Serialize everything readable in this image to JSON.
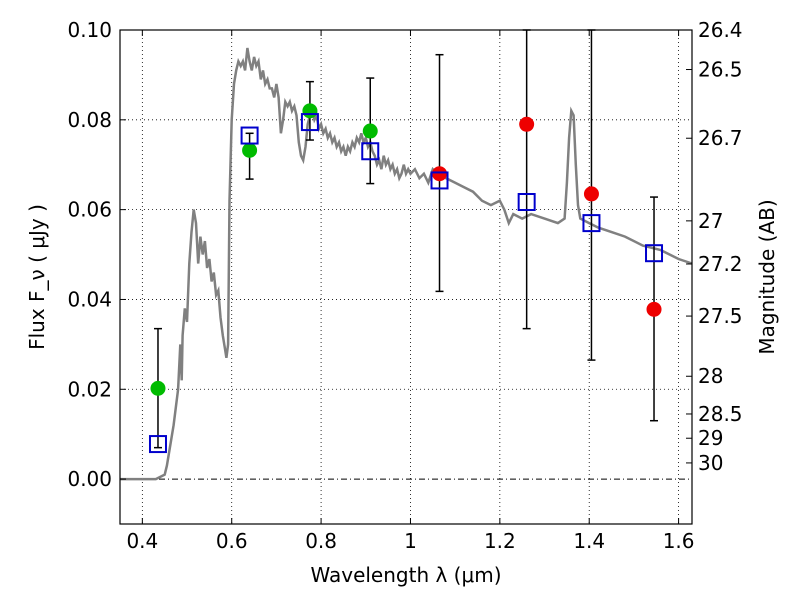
{
  "chart_data": {
    "type": "scatter",
    "xlabel": "Wavelength  λ (μm)",
    "ylabel": "Flux  F_ν  ( μJy )",
    "ylabel_right": "Magnitude (AB)",
    "xlim": [
      0.35,
      1.63
    ],
    "ylim": [
      -0.01,
      0.1
    ],
    "grid": true,
    "x_ticks": [
      0.4,
      0.6,
      0.8,
      1.0,
      1.2,
      1.4,
      1.6
    ],
    "x_tick_labels": [
      "0.4",
      "0.6",
      "0.8",
      "1",
      "1.2",
      "1.4",
      "1.6"
    ],
    "y_ticks": [
      0.0,
      0.02,
      0.04,
      0.06,
      0.08,
      0.1
    ],
    "y_tick_labels": [
      "0.00",
      "0.02",
      "0.04",
      "0.06",
      "0.08",
      "0.10"
    ],
    "right_ticks": [
      {
        "label": "26.4",
        "flux": 0.1
      },
      {
        "label": "26.5",
        "flux": 0.0912
      },
      {
        "label": "26.7",
        "flux": 0.0759
      },
      {
        "label": "27",
        "flux": 0.0575
      },
      {
        "label": "27.2",
        "flux": 0.0479
      },
      {
        "label": "27.5",
        "flux": 0.0363
      },
      {
        "label": "28",
        "flux": 0.0229
      },
      {
        "label": "28.5",
        "flux": 0.0145
      },
      {
        "label": "29",
        "flux": 0.0091
      },
      {
        "label": "30",
        "flux": 0.0036
      }
    ],
    "sed_curve": {
      "color": "#808080",
      "points": [
        [
          0.35,
          0.0
        ],
        [
          0.43,
          0.0
        ],
        [
          0.45,
          0.001
        ],
        [
          0.455,
          0.003
        ],
        [
          0.47,
          0.012
        ],
        [
          0.48,
          0.02
        ],
        [
          0.485,
          0.03
        ],
        [
          0.488,
          0.022
        ],
        [
          0.49,
          0.032
        ],
        [
          0.495,
          0.038
        ],
        [
          0.5,
          0.035
        ],
        [
          0.505,
          0.048
        ],
        [
          0.51,
          0.055
        ],
        [
          0.515,
          0.06
        ],
        [
          0.52,
          0.057
        ],
        [
          0.525,
          0.048
        ],
        [
          0.53,
          0.054
        ],
        [
          0.535,
          0.05
        ],
        [
          0.54,
          0.053
        ],
        [
          0.545,
          0.047
        ],
        [
          0.55,
          0.049
        ],
        [
          0.555,
          0.044
        ],
        [
          0.56,
          0.046
        ],
        [
          0.565,
          0.041
        ],
        [
          0.57,
          0.042
        ],
        [
          0.575,
          0.036
        ],
        [
          0.58,
          0.032
        ],
        [
          0.585,
          0.029
        ],
        [
          0.588,
          0.027
        ],
        [
          0.592,
          0.03
        ],
        [
          0.595,
          0.062
        ],
        [
          0.6,
          0.08
        ],
        [
          0.605,
          0.088
        ],
        [
          0.61,
          0.091
        ],
        [
          0.615,
          0.093
        ],
        [
          0.62,
          0.092
        ],
        [
          0.625,
          0.093
        ],
        [
          0.63,
          0.091
        ],
        [
          0.635,
          0.096
        ],
        [
          0.64,
          0.093
        ],
        [
          0.645,
          0.091
        ],
        [
          0.65,
          0.094
        ],
        [
          0.655,
          0.092
        ],
        [
          0.66,
          0.093
        ],
        [
          0.665,
          0.089
        ],
        [
          0.67,
          0.091
        ],
        [
          0.675,
          0.088
        ],
        [
          0.68,
          0.089
        ],
        [
          0.685,
          0.087
        ],
        [
          0.69,
          0.087
        ],
        [
          0.695,
          0.085
        ],
        [
          0.7,
          0.088
        ],
        [
          0.705,
          0.085
        ],
        [
          0.71,
          0.077
        ],
        [
          0.715,
          0.08
        ],
        [
          0.72,
          0.084
        ],
        [
          0.725,
          0.083
        ],
        [
          0.73,
          0.084
        ],
        [
          0.735,
          0.082
        ],
        [
          0.74,
          0.083
        ],
        [
          0.745,
          0.081
        ],
        [
          0.75,
          0.075
        ],
        [
          0.755,
          0.072
        ],
        [
          0.76,
          0.071
        ],
        [
          0.765,
          0.074
        ],
        [
          0.77,
          0.079
        ],
        [
          0.775,
          0.081
        ],
        [
          0.78,
          0.082
        ],
        [
          0.785,
          0.08
        ],
        [
          0.79,
          0.081
        ],
        [
          0.795,
          0.078
        ],
        [
          0.8,
          0.079
        ],
        [
          0.805,
          0.077
        ],
        [
          0.81,
          0.078
        ],
        [
          0.815,
          0.076
        ],
        [
          0.82,
          0.077
        ],
        [
          0.825,
          0.075
        ],
        [
          0.83,
          0.076
        ],
        [
          0.835,
          0.074
        ],
        [
          0.84,
          0.075
        ],
        [
          0.845,
          0.073
        ],
        [
          0.85,
          0.074
        ],
        [
          0.855,
          0.072
        ],
        [
          0.86,
          0.074
        ],
        [
          0.865,
          0.073
        ],
        [
          0.87,
          0.075
        ],
        [
          0.875,
          0.074
        ],
        [
          0.88,
          0.076
        ],
        [
          0.885,
          0.075
        ],
        [
          0.89,
          0.077
        ],
        [
          0.895,
          0.075
        ],
        [
          0.9,
          0.076
        ],
        [
          0.905,
          0.074
        ],
        [
          0.91,
          0.075
        ],
        [
          0.915,
          0.073
        ],
        [
          0.92,
          0.072
        ],
        [
          0.925,
          0.07
        ],
        [
          0.93,
          0.071
        ],
        [
          0.935,
          0.069
        ],
        [
          0.94,
          0.072
        ],
        [
          0.945,
          0.07
        ],
        [
          0.95,
          0.071
        ],
        [
          0.955,
          0.069
        ],
        [
          0.96,
          0.07
        ],
        [
          0.965,
          0.068
        ],
        [
          0.97,
          0.069
        ],
        [
          0.975,
          0.067
        ],
        [
          0.98,
          0.068
        ],
        [
          0.985,
          0.07
        ],
        [
          0.99,
          0.068
        ],
        [
          0.995,
          0.069
        ],
        [
          1.0,
          0.068
        ],
        [
          1.01,
          0.069
        ],
        [
          1.02,
          0.067
        ],
        [
          1.03,
          0.068
        ],
        [
          1.04,
          0.066
        ],
        [
          1.05,
          0.069
        ],
        [
          1.06,
          0.068
        ],
        [
          1.08,
          0.067
        ],
        [
          1.1,
          0.066
        ],
        [
          1.12,
          0.065
        ],
        [
          1.14,
          0.064
        ],
        [
          1.16,
          0.062
        ],
        [
          1.18,
          0.061
        ],
        [
          1.2,
          0.062
        ],
        [
          1.21,
          0.06
        ],
        [
          1.22,
          0.057
        ],
        [
          1.23,
          0.059
        ],
        [
          1.25,
          0.058
        ],
        [
          1.27,
          0.059
        ],
        [
          1.3,
          0.058
        ],
        [
          1.33,
          0.057
        ],
        [
          1.345,
          0.058
        ],
        [
          1.35,
          0.066
        ],
        [
          1.355,
          0.076
        ],
        [
          1.36,
          0.082
        ],
        [
          1.365,
          0.081
        ],
        [
          1.37,
          0.07
        ],
        [
          1.375,
          0.061
        ],
        [
          1.38,
          0.058
        ],
        [
          1.4,
          0.057
        ],
        [
          1.42,
          0.056
        ],
        [
          1.45,
          0.055
        ],
        [
          1.48,
          0.054
        ],
        [
          1.52,
          0.052
        ],
        [
          1.56,
          0.051
        ],
        [
          1.6,
          0.049
        ],
        [
          1.63,
          0.048
        ]
      ]
    },
    "model_points": {
      "color": "#0000cc",
      "points": [
        [
          0.435,
          0.0078
        ],
        [
          0.64,
          0.0765
        ],
        [
          0.775,
          0.0795
        ],
        [
          0.91,
          0.073
        ],
        [
          1.065,
          0.0665
        ],
        [
          1.26,
          0.0617
        ],
        [
          1.405,
          0.057
        ],
        [
          1.545,
          0.0503
        ]
      ]
    },
    "observed_points": [
      {
        "x": 0.435,
        "y": 0.0202,
        "err_hi": 0.0335,
        "err_lo": 0.007,
        "color": "#00bb00"
      },
      {
        "x": 0.64,
        "y": 0.0732,
        "err_hi": 0.077,
        "err_lo": 0.0668,
        "color": "#00bb00"
      },
      {
        "x": 0.775,
        "y": 0.082,
        "err_hi": 0.0885,
        "err_lo": 0.0755,
        "color": "#00bb00"
      },
      {
        "x": 0.91,
        "y": 0.0775,
        "err_hi": 0.0893,
        "err_lo": 0.0658,
        "color": "#00bb00"
      },
      {
        "x": 1.065,
        "y": 0.068,
        "err_hi": 0.0945,
        "err_lo": 0.0418,
        "color": "#ee0000"
      },
      {
        "x": 1.26,
        "y": 0.079,
        "err_hi": 0.1,
        "err_lo": 0.0335,
        "color": "#ee0000"
      },
      {
        "x": 1.405,
        "y": 0.0635,
        "err_hi": 0.1,
        "err_lo": 0.0265,
        "color": "#ee0000"
      },
      {
        "x": 1.545,
        "y": 0.0378,
        "err_hi": 0.0628,
        "err_lo": 0.013,
        "color": "#ee0000"
      }
    ]
  }
}
